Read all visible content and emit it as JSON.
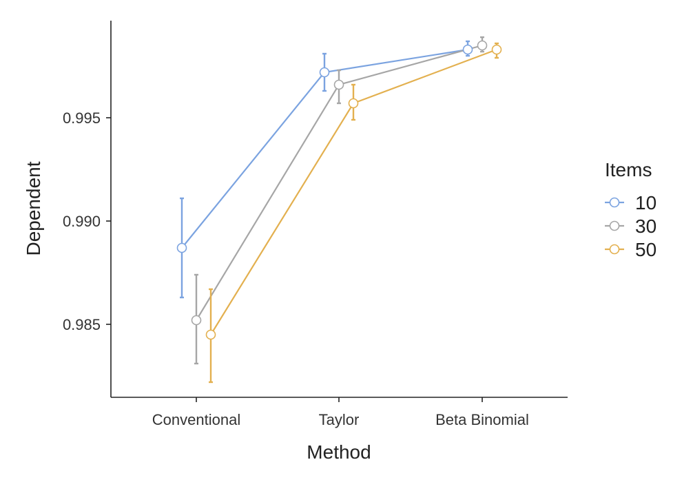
{
  "chart_data": {
    "type": "line",
    "xlabel": "Method",
    "ylabel": "Dependent",
    "categories": [
      "Conventional",
      "Taylor",
      "Beta Binomial"
    ],
    "ylim": [
      0.9815,
      0.9995
    ],
    "yticks": [
      0.985,
      0.99,
      0.995
    ],
    "ytick_labels": [
      "0.985",
      "0.990",
      "0.995"
    ],
    "grid": false,
    "legend": {
      "title": "Items",
      "position": "right"
    },
    "series": [
      {
        "name": "10",
        "color": "#7ba3e0",
        "values": [
          0.9887,
          0.9972,
          0.9983
        ],
        "lower": [
          0.9863,
          0.9963,
          0.998
        ],
        "upper": [
          0.9911,
          0.9981,
          0.9987
        ]
      },
      {
        "name": "30",
        "color": "#a6a6a6",
        "values": [
          0.9852,
          0.9966,
          0.9985
        ],
        "lower": [
          0.9831,
          0.9957,
          0.9982
        ],
        "upper": [
          0.9874,
          0.9973,
          0.9989
        ]
      },
      {
        "name": "50",
        "color": "#e3b04f",
        "values": [
          0.9845,
          0.9957,
          0.9983
        ],
        "lower": [
          0.9822,
          0.9949,
          0.9979
        ],
        "upper": [
          0.9867,
          0.9966,
          0.9986
        ]
      }
    ]
  }
}
